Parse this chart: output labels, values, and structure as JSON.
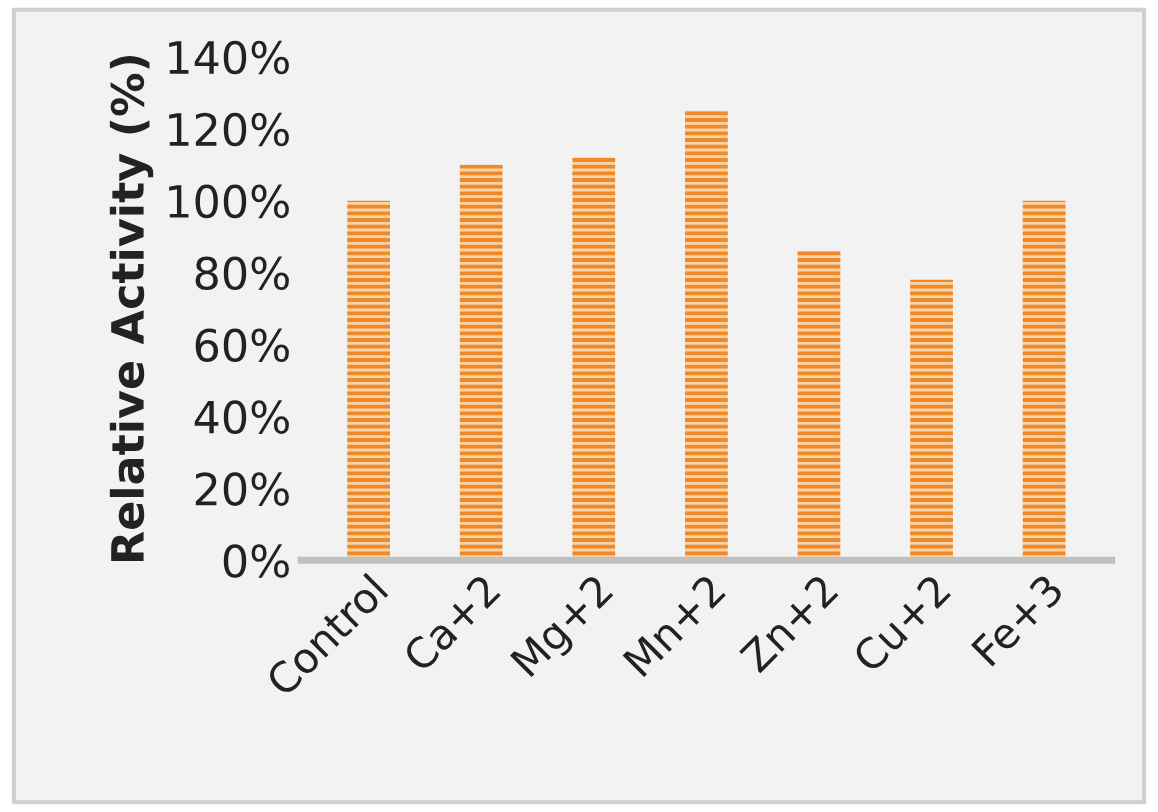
{
  "chart_data": {
    "type": "bar",
    "ylabel": "Relative Activity (%)",
    "categories": [
      "Control",
      "Ca+2",
      "Mg+2",
      "Mn+2",
      "Zn+2",
      "Cu+2",
      "Fe+3"
    ],
    "values": [
      100,
      110,
      112,
      125,
      86,
      78,
      100
    ],
    "color": "#f0892a",
    "ylim": [
      0,
      140
    ],
    "yticks": [
      {
        "value": 0,
        "label": "0%"
      },
      {
        "value": 20,
        "label": "20%"
      },
      {
        "value": 40,
        "label": "40%"
      },
      {
        "value": 60,
        "label": "60%"
      },
      {
        "value": 80,
        "label": "80%"
      },
      {
        "value": 100,
        "label": "100%"
      },
      {
        "value": 120,
        "label": "120%"
      },
      {
        "value": 140,
        "label": "140%"
      }
    ],
    "grid": false,
    "legend": false
  }
}
